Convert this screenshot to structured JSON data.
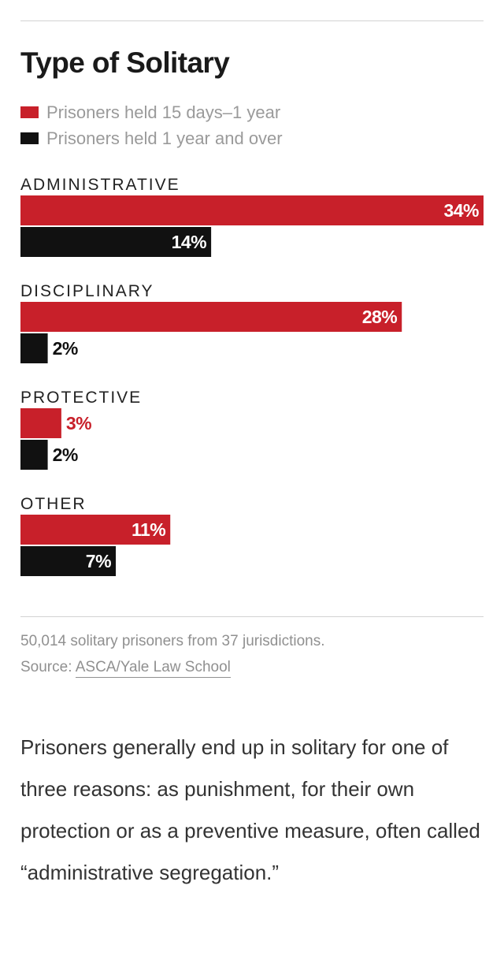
{
  "colors": {
    "series_1": "#c8202a",
    "series_2": "#111111",
    "label_on_bar": "#ffffff"
  },
  "chart_data": {
    "type": "bar",
    "orientation": "horizontal",
    "title": "Type of Solitary",
    "categories": [
      "ADMINISTRATIVE",
      "DISCIPLINARY",
      "PROTECTIVE",
      "OTHER"
    ],
    "series": [
      {
        "name": "Prisoners held 15 days–1 year",
        "values": [
          34,
          28,
          3,
          11
        ],
        "labels": [
          "34%",
          "28%",
          "3%",
          "11%"
        ]
      },
      {
        "name": "Prisoners held 1 year and over",
        "values": [
          14,
          2,
          2,
          7
        ],
        "labels": [
          "14%",
          "2%",
          "2%",
          "7%"
        ]
      }
    ],
    "xlim": [
      0,
      34
    ],
    "grid": false,
    "legend": "top-left"
  },
  "footnote": {
    "line1": "50,014 solitary prisoners from 37 jurisdictions.",
    "source_prefix": "Source:",
    "source_link": "ASCA/Yale Law School"
  },
  "body_text": "Prisoners generally end up in solitary for one of three reasons: as punishment, for their own protection or as a preventive measure, often called “administrative segregation.”"
}
